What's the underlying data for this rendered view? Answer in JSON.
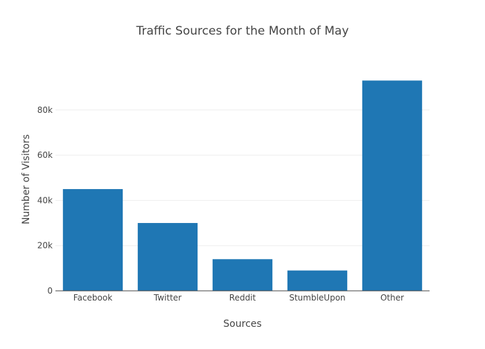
{
  "chart_data": {
    "type": "bar",
    "title": "Traffic Sources for the Month of May",
    "xlabel": "Sources",
    "ylabel": "Number of Visitors",
    "categories": [
      "Facebook",
      "Twitter",
      "Reddit",
      "StumbleUpon",
      "Other"
    ],
    "values": [
      45000,
      30000,
      14000,
      9000,
      93000
    ],
    "ylim": [
      0,
      98000
    ],
    "yticks": [
      0,
      20000,
      40000,
      60000,
      80000
    ],
    "ytick_labels": [
      "0",
      "20k",
      "40k",
      "60k",
      "80k"
    ],
    "grid": true,
    "legend": "none",
    "bar_color": "#1f77b4"
  }
}
